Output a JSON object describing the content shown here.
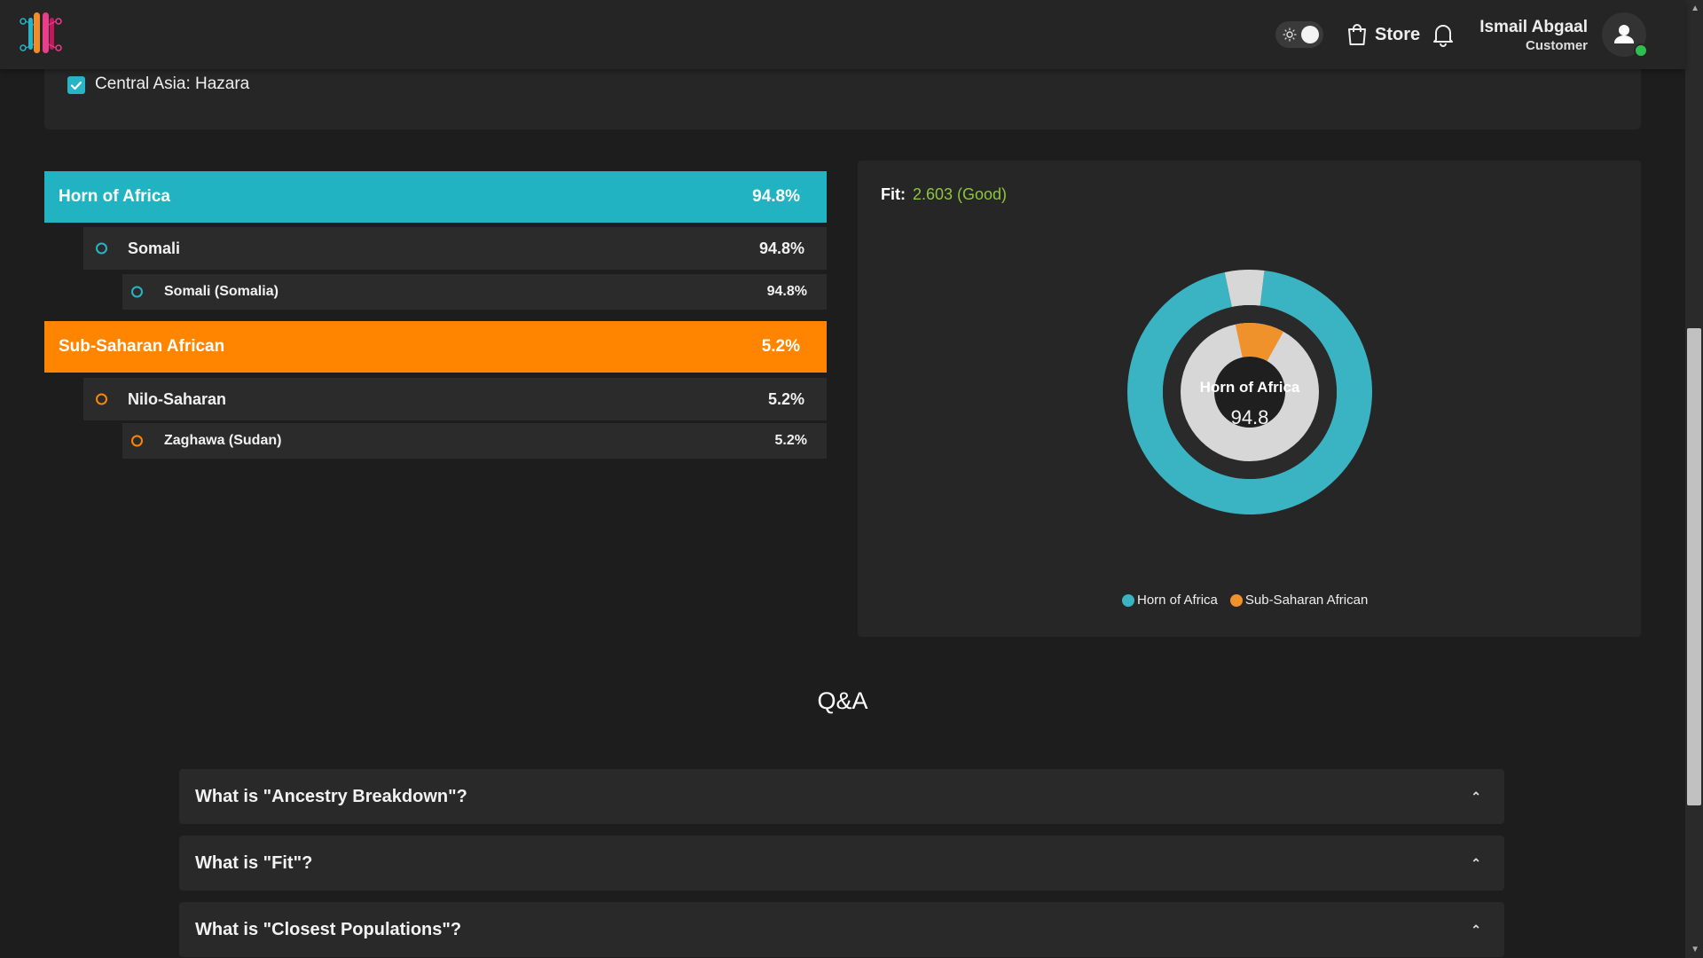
{
  "header": {
    "store_label": "Store",
    "user_name": "Ismail Abgaal",
    "user_role": "Customer"
  },
  "filter": {
    "checked_label": "Central Asia: Hazara"
  },
  "breakdown": {
    "groups": [
      {
        "label": "Horn of Africa",
        "value": "94.8%",
        "color": "#22b3c2",
        "sub": {
          "label": "Somali",
          "value": "94.8%"
        },
        "subsub": {
          "label": "Somali (Somalia)",
          "value": "94.8%"
        }
      },
      {
        "label": "Sub-Saharan African",
        "value": "5.2%",
        "color": "#ff8500",
        "sub": {
          "label": "Nilo-Saharan",
          "value": "5.2%"
        },
        "subsub": {
          "label": "Zaghawa (Sudan)",
          "value": "5.2%"
        }
      }
    ]
  },
  "fit": {
    "label": "Fit:",
    "value": "2.603 (Good)"
  },
  "chart_data": {
    "type": "pie",
    "center_label": "Horn of Africa",
    "center_value": "94.8",
    "series": [
      {
        "name": "Horn of Africa",
        "value": 94.8,
        "color": "#3ab4c2"
      },
      {
        "name": "Sub-Saharan African",
        "value": 5.2,
        "color": "#f0922b"
      }
    ],
    "legend_position": "bottom"
  },
  "qa": {
    "title": "Q&A",
    "items": [
      "What is \"Ancestry Breakdown\"?",
      "What is \"Fit\"?",
      "What is \"Closest Populations\"?"
    ]
  }
}
